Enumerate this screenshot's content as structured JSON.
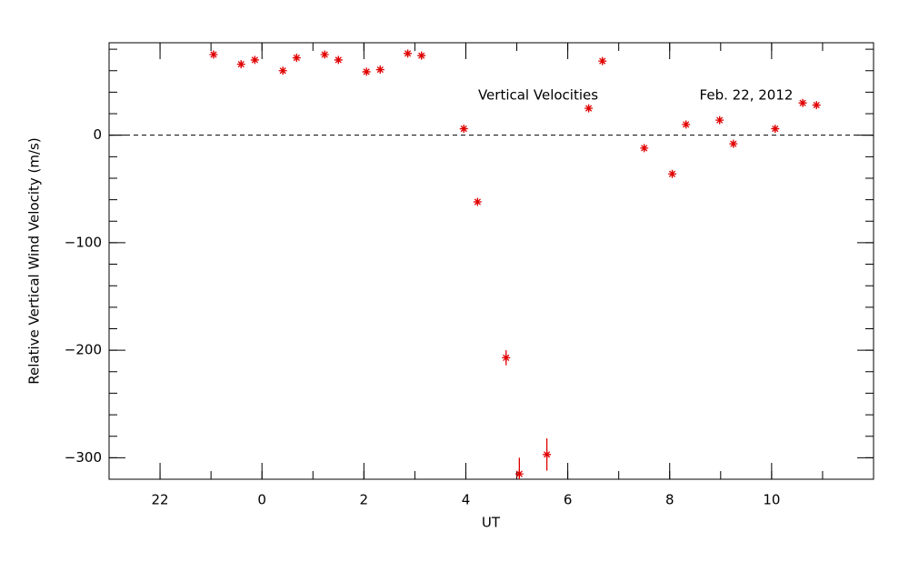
{
  "chart_data": {
    "type": "scatter",
    "xlabel": "UT",
    "ylabel": "Relative Vertical Wind Velocity (m/s)",
    "annotations": [
      "Vertical Velocities",
      "Feb. 22, 2012"
    ],
    "xlim": [
      21,
      36
    ],
    "ylim": [
      -320,
      86
    ],
    "xticks": [
      {
        "value": 22,
        "label": "22"
      },
      {
        "value": 24,
        "label": "0"
      },
      {
        "value": 26,
        "label": "2"
      },
      {
        "value": 28,
        "label": "4"
      },
      {
        "value": 30,
        "label": "6"
      },
      {
        "value": 32,
        "label": "8"
      },
      {
        "value": 34,
        "label": "10"
      }
    ],
    "yticks": [
      {
        "value": -300,
        "label": "−300"
      },
      {
        "value": -200,
        "label": "−200"
      },
      {
        "value": -100,
        "label": "−100"
      },
      0
    ],
    "reference_line": 0,
    "color": "#e00000",
    "x": [
      23.05,
      23.59,
      23.86,
      24.41,
      24.68,
      25.23,
      25.5,
      26.05,
      26.32,
      26.86,
      27.13,
      27.96,
      28.23,
      28.79,
      29.05,
      29.59,
      30.41,
      30.68,
      31.5,
      32.05,
      32.32,
      32.98,
      33.25,
      34.07,
      34.61,
      34.88
    ],
    "values": [
      75,
      66,
      70,
      60,
      72,
      75,
      70,
      59,
      61,
      76,
      74,
      6,
      -62,
      -207,
      -315,
      -297,
      25,
      69,
      -12,
      -36,
      10,
      14,
      -8,
      6,
      30,
      28
    ],
    "errors": [
      3,
      3,
      3,
      3,
      3,
      3,
      3,
      3,
      3,
      3,
      3,
      3,
      3,
      7,
      15,
      15,
      3,
      3,
      3,
      3,
      3,
      3,
      3,
      3,
      3,
      3
    ]
  }
}
